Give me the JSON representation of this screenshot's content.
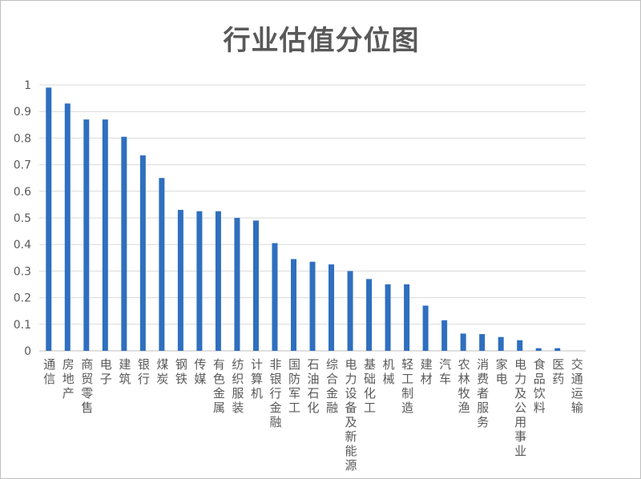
{
  "chart_data": {
    "type": "bar",
    "title": "行业估值分位图",
    "xlabel": "",
    "ylabel": "",
    "ylim": [
      0,
      1
    ],
    "yticks": [
      "0",
      "0.1",
      "0.2",
      "0.3",
      "0.4",
      "0.5",
      "0.6",
      "0.7",
      "0.8",
      "0.9",
      "1"
    ],
    "grid": true,
    "legend": "none",
    "bar_color": "#2f6fbf",
    "categories": [
      "通信",
      "房地产",
      "商贸零售",
      "电子",
      "建筑",
      "银行",
      "煤炭",
      "钢铁",
      "传媒",
      "有色金属",
      "纺织服装",
      "计算机",
      "非银行金融",
      "国防军工",
      "石油石化",
      "综合金融",
      "电力设备及新能源",
      "基础化工",
      "机械",
      "轻工制造",
      "建材",
      "汽车",
      "农林牧渔",
      "消费者服务",
      "家电",
      "电力及公用事业",
      "食品饮料",
      "医药",
      "交通运输"
    ],
    "values": [
      0.99,
      0.93,
      0.87,
      0.87,
      0.805,
      0.735,
      0.65,
      0.53,
      0.525,
      0.525,
      0.5,
      0.49,
      0.405,
      0.345,
      0.335,
      0.325,
      0.3,
      0.27,
      0.25,
      0.25,
      0.17,
      0.115,
      0.065,
      0.063,
      0.052,
      0.04,
      0.01,
      0.01,
      0.0
    ]
  }
}
